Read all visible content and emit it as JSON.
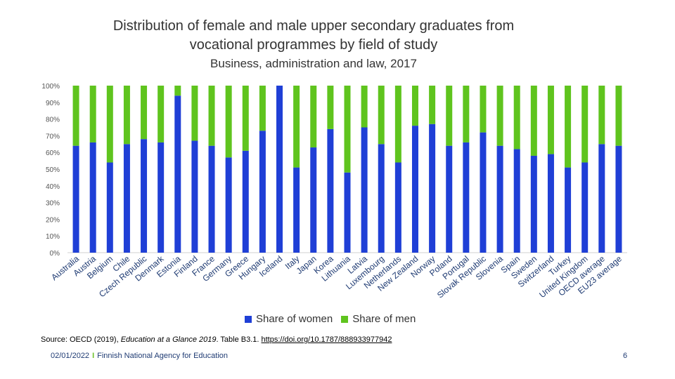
{
  "title_line1": "Distribution of female and male  upper secondary graduates from",
  "title_line2": "vocational programmes by field of study",
  "subtitle": "Business, administration and law, 2017",
  "source_prefix": "Source: OECD (2019), ",
  "source_italic": "Education at a Glance 2019",
  "source_middle": ". Table B3.1. ",
  "source_link": "https://doi.org/10.1787/888933977942",
  "footer_date": "02/01/2022",
  "footer_separator": "I",
  "footer_org": "Finnish National Agency for Education",
  "page_number": "6",
  "colors": {
    "women": "#1f3fd6",
    "men": "#5fc41e"
  },
  "chart_data": {
    "type": "bar",
    "stacked": true,
    "percent": true,
    "ylim": [
      0,
      100
    ],
    "yticks": [
      "0%",
      "10%",
      "20%",
      "30%",
      "40%",
      "50%",
      "60%",
      "70%",
      "80%",
      "90%",
      "100%"
    ],
    "legend_position": "bottom",
    "grid": false,
    "categories": [
      "Australia",
      "Austria",
      "Belgium",
      "Chile",
      "Czech Republic",
      "Denmark",
      "Estonia",
      "Finland",
      "France",
      "Germany",
      "Greece",
      "Hungary",
      "Iceland",
      "Italy",
      "Japan",
      "Korea",
      "Lithuania",
      "Latvia",
      "Luxembourg",
      "Netherlands",
      "New Zealand",
      "Norway",
      "Poland",
      "Portugal",
      "Slovak Republic",
      "Slovenia",
      "Spain",
      "Sweden",
      "Switzerland",
      "Turkey",
      "United Kingdom",
      "OECD average",
      "EU23 average"
    ],
    "series": [
      {
        "name": "Share of women",
        "values": [
          64,
          66,
          54,
          65,
          68,
          66,
          94,
          67,
          64,
          57,
          61,
          73,
          100,
          51,
          63,
          74,
          48,
          75,
          65,
          54,
          76,
          77,
          64,
          66,
          72,
          64,
          62,
          58,
          59,
          51,
          54,
          65,
          64
        ]
      },
      {
        "name": "Share of men",
        "values": [
          36,
          34,
          46,
          35,
          32,
          34,
          6,
          33,
          36,
          43,
          39,
          27,
          0,
          49,
          37,
          26,
          52,
          25,
          35,
          46,
          24,
          23,
          36,
          34,
          28,
          36,
          38,
          42,
          41,
          49,
          46,
          35,
          36
        ]
      }
    ]
  }
}
